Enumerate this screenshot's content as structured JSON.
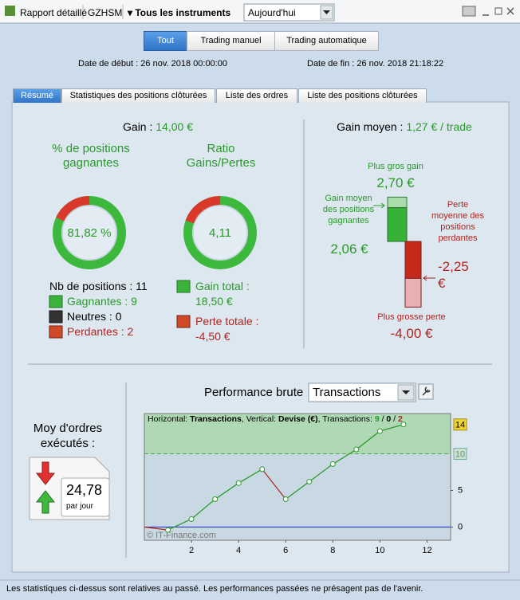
{
  "toolbar": {
    "report": "Rapport détaillé",
    "account": "GZHSM",
    "instruments": "Tous les instruments",
    "period": "Aujourd'hui"
  },
  "filters": [
    "Tout",
    "Trading manuel",
    "Trading automatique"
  ],
  "dates": {
    "start_label": "Date de début :",
    "start": "26 nov. 2018 00:00:00",
    "end_label": "Date de fin :",
    "end": "26 nov. 2018 21:18:22"
  },
  "tabs": [
    "Résumé",
    "Statistiques des positions clôturées",
    "Liste des ordres",
    "Liste des positions clôturées"
  ],
  "summary": {
    "gain_label": "Gain :",
    "gain": "14,00 €",
    "avg_gain_label": "Gain moyen :",
    "avg_gain": "1,27 € / trade",
    "win_rate": {
      "title": "% de positions gagnantes",
      "value": 81.82,
      "label": "81,82 %"
    },
    "ratio": {
      "title": "Ratio Gains/Pertes",
      "value": 4.11,
      "label": "4,11"
    },
    "positions": "Nb de positions : 11",
    "winners": "Gagnantes : 9",
    "neutral": "Neutres : 0",
    "losers": "Perdantes : 2",
    "total_gain_label": "Gain total :",
    "total_gain": "18,50 €",
    "total_loss_label": "Perte totale :",
    "total_loss": "-4,50 €",
    "max_gain": {
      "title": "Plus gros gain",
      "value": 2.7,
      "label": "2,70 €"
    },
    "avg_win": {
      "title": "Gain moyen des positions gagnantes",
      "value": 2.06,
      "label": "2,06 €"
    },
    "avg_loss": {
      "title": "Perte moyenne des positions perdantes",
      "value": -2.25,
      "label": "-2,25 €"
    },
    "max_loss": {
      "title": "Plus grosse perte",
      "value": -4.0,
      "label": "-4,00 €"
    }
  },
  "orders": {
    "title": "Moy d'ordres exécutés :",
    "value": "24,78",
    "unit": "par jour"
  },
  "performance": {
    "title": "Performance brute",
    "mode": "Transactions",
    "chart_data": {
      "type": "line",
      "header": [
        "Horizontal: ",
        "Transactions",
        ", Vertical: ",
        "Devise (€)",
        ", Transactions: ",
        "9",
        " / ",
        "0",
        " / ",
        "2"
      ],
      "x": [
        0,
        1,
        2,
        3,
        4,
        5,
        6,
        7,
        8,
        9,
        10,
        11
      ],
      "values": [
        0,
        -0.4,
        1.1,
        3.8,
        6.0,
        7.9,
        3.8,
        6.2,
        8.6,
        10.6,
        13.1,
        14.0
      ],
      "xlim": [
        0,
        13
      ],
      "ylim": [
        -1.8,
        15.5
      ],
      "xticks": [
        2,
        4,
        6,
        8,
        10,
        12
      ],
      "yticks": [
        0,
        5
      ],
      "threshold": 10,
      "last_value": 14,
      "color": "#2e9a2e",
      "down_color": "#b02a2a",
      "zero_color": "#2a3cc0",
      "watermark": "© IT-Finance.com"
    }
  },
  "footer": "Les statistiques ci-dessus sont relatives au passé. Les performances passées ne présagent pas de l'avenir."
}
